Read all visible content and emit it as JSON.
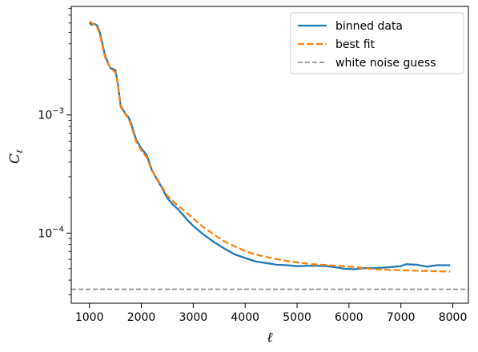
{
  "chart_data": {
    "type": "line",
    "title": "",
    "xlabel": "ℓ",
    "ylabel": "C",
    "ylabel_subscript": "ℓ",
    "xscale": "linear",
    "yscale": "log",
    "xlim": [
      650,
      8300
    ],
    "ylim": [
      2.55e-05,
      0.0083
    ],
    "x_ticks": [
      1000,
      2000,
      3000,
      4000,
      5000,
      6000,
      7000,
      8000
    ],
    "y_ticks": [
      {
        "value": 0.001,
        "base": "10",
        "exp": "−3"
      },
      {
        "value": 0.0001,
        "base": "10",
        "exp": "−4"
      }
    ],
    "grid": false,
    "legend_position": "top-right",
    "series": [
      {
        "name": "binned data",
        "color": "#1f77b4",
        "style": "solid",
        "x": [
          1000,
          1050,
          1100,
          1150,
          1200,
          1300,
          1400,
          1500,
          1550,
          1600,
          1700,
          1750,
          1800,
          1900,
          2000,
          2100,
          2150,
          2200,
          2300,
          2400,
          2500,
          2600,
          2700,
          2800,
          2900,
          3000,
          3200,
          3400,
          3600,
          3800,
          4000,
          4200,
          4500,
          4600,
          4800,
          5000,
          5300,
          5600,
          5900,
          6100,
          6300,
          6500,
          6800,
          7000,
          7100,
          7300,
          7500,
          7700,
          7950
        ],
        "values": [
          0.006,
          0.0058,
          0.0059,
          0.0057,
          0.005,
          0.0032,
          0.0025,
          0.0024,
          0.0018,
          0.0012,
          0.00101,
          0.00096,
          0.00085,
          0.00062,
          0.00052,
          0.00046,
          0.0004,
          0.000345,
          0.000285,
          0.00024,
          0.000198,
          0.000176,
          0.00016,
          0.000143,
          0.000127,
          0.000115,
          9.7e-05,
          8.4e-05,
          7.4e-05,
          6.6e-05,
          6.15e-05,
          5.75e-05,
          5.5e-05,
          5.4e-05,
          5.35e-05,
          5.25e-05,
          5.3e-05,
          5.25e-05,
          5e-05,
          4.95e-05,
          5.05e-05,
          5.05e-05,
          5.15e-05,
          5.25e-05,
          5.45e-05,
          5.4e-05,
          5.2e-05,
          5.35e-05,
          5.35e-05
        ]
      },
      {
        "name": "best fit",
        "color": "#ff7f0e",
        "style": "dashed",
        "x": [
          1000,
          1050,
          1100,
          1150,
          1200,
          1300,
          1400,
          1500,
          1550,
          1600,
          1700,
          1750,
          1800,
          1900,
          2000,
          2100,
          2200,
          2300,
          2400,
          2500,
          2600,
          2700,
          2800,
          2900,
          3000,
          3200,
          3400,
          3600,
          3800,
          4000,
          4200,
          4500,
          4800,
          5000,
          5300,
          5600,
          5900,
          6100,
          6300,
          6500,
          6800,
          7000,
          7300,
          7500,
          7700,
          7950
        ],
        "values": [
          0.0062,
          0.006,
          0.0058,
          0.0055,
          0.0048,
          0.0031,
          0.0025,
          0.0023,
          0.0018,
          0.00118,
          0.001,
          0.00094,
          0.00082,
          0.0006,
          0.0005,
          0.00044,
          0.00034,
          0.00029,
          0.000245,
          0.000208,
          0.000188,
          0.000171,
          0.000158,
          0.000145,
          0.000133,
          0.000112,
          9.7e-05,
          8.5e-05,
          7.7e-05,
          7.05e-05,
          6.6e-05,
          6.15e-05,
          5.8e-05,
          5.65e-05,
          5.45e-05,
          5.35e-05,
          5.25e-05,
          5.15e-05,
          5.05e-05,
          4.95e-05,
          4.88e-05,
          4.85e-05,
          4.8e-05,
          4.78e-05,
          4.76e-05,
          4.72e-05
        ]
      },
      {
        "name": "white noise guess",
        "color": "#808080",
        "style": "dashed",
        "x": [
          650,
          8300
        ],
        "values": [
          3.35e-05,
          3.35e-05
        ]
      }
    ]
  }
}
